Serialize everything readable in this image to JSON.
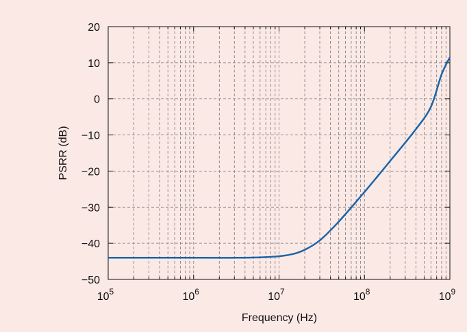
{
  "chart_data": {
    "type": "line",
    "title": "",
    "xlabel": "Frequency (Hz)",
    "ylabel": "PSRR (dB)",
    "xscale": "log",
    "xlim": [
      100000,
      1000000000
    ],
    "ylim": [
      -50,
      20
    ],
    "grid": true,
    "x_ticks": [
      {
        "base": "10",
        "exp": "5"
      },
      {
        "base": "10",
        "exp": "6"
      },
      {
        "base": "10",
        "exp": "7"
      },
      {
        "base": "10",
        "exp": "8"
      },
      {
        "base": "10",
        "exp": "9"
      }
    ],
    "y_ticks": [
      "20",
      "10",
      "0",
      "−10",
      "−20",
      "−30",
      "−40",
      "−50"
    ],
    "y_tick_values": [
      20,
      10,
      0,
      -10,
      -20,
      -30,
      -40,
      -50
    ],
    "series": [
      {
        "color": "#1a64a8",
        "x": [
          100000,
          1000000,
          3000000,
          6000000,
          10000000,
          15000000,
          20000000,
          30000000,
          50000000,
          100000000,
          200000000,
          400000000,
          600000000,
          800000000,
          1000000000
        ],
        "y": [
          -44,
          -44,
          -44,
          -43.9,
          -43.6,
          -42.9,
          -41.8,
          -39.2,
          -34.0,
          -25.8,
          -17.2,
          -8.4,
          -2.2,
          6.8,
          11.5
        ]
      }
    ]
  }
}
